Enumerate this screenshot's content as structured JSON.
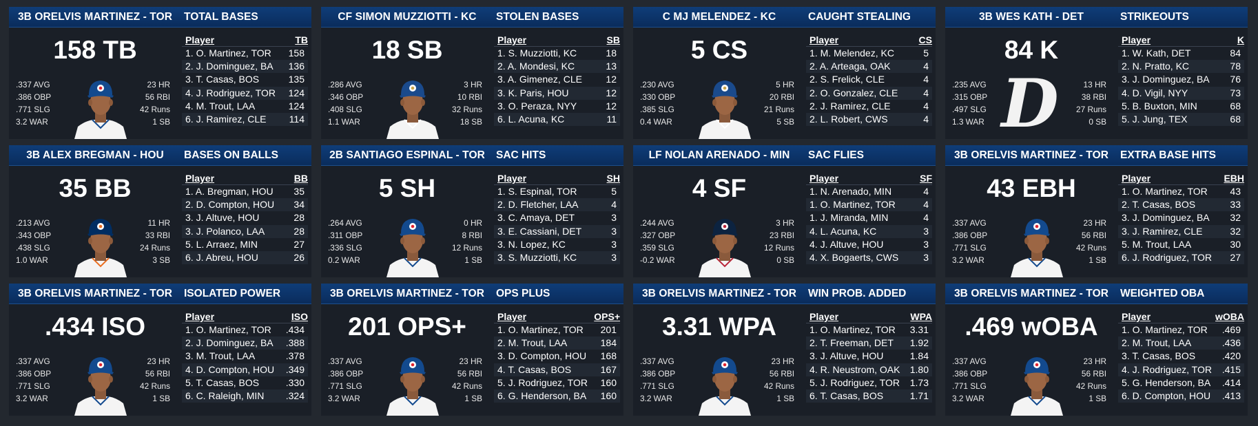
{
  "cards": [
    {
      "player": "3B ORELVIS MARTINEZ - TOR",
      "category": "TOTAL BASES",
      "big": "158 TB",
      "left_stats": [
        ".337 AVG",
        ".386 OBP",
        ".771 SLG",
        "3.2 WAR"
      ],
      "right_stats": [
        "23 HR",
        "56 RBI",
        "42 Runs",
        "1 SB"
      ],
      "portrait": "blue-jays-cap",
      "col_abbr": "TB",
      "rows": [
        [
          "1. O. Martinez, TOR",
          "158"
        ],
        [
          "2. J. Dominguez, BA",
          "136"
        ],
        [
          "3. T. Casas, BOS",
          "135"
        ],
        [
          "4. J. Rodriguez, TOR",
          "124"
        ],
        [
          "4. M. Trout, LAA",
          "124"
        ],
        [
          "6. J. Ramirez, CLE",
          "114"
        ]
      ]
    },
    {
      "player": "CF SIMON MUZZIOTTI - KC",
      "category": "STOLEN BASES",
      "big": "18 SB",
      "left_stats": [
        ".286 AVG",
        ".346 OBP",
        ".408 SLG",
        "1.1 WAR"
      ],
      "right_stats": [
        "3 HR",
        "10 RBI",
        "32 Runs",
        "18 SB"
      ],
      "portrait": "royals-cap",
      "col_abbr": "SB",
      "rows": [
        [
          "1. S. Muzziotti, KC",
          "18"
        ],
        [
          "2. A. Mondesi, KC",
          "13"
        ],
        [
          "3. A. Gimenez, CLE",
          "12"
        ],
        [
          "3. K. Paris, HOU",
          "12"
        ],
        [
          "3. O. Peraza, NYY",
          "12"
        ],
        [
          "6. L. Acuna, KC",
          "11"
        ]
      ]
    },
    {
      "player": "C MJ MELENDEZ - KC",
      "category": "CAUGHT STEALING",
      "big": "5 CS",
      "left_stats": [
        ".230 AVG",
        ".330 OBP",
        ".385 SLG",
        "0.4 WAR"
      ],
      "right_stats": [
        "5 HR",
        "20 RBI",
        "21 Runs",
        "5 SB"
      ],
      "portrait": "royals-cap",
      "col_abbr": "CS",
      "rows": [
        [
          "1. M. Melendez, KC",
          "5"
        ],
        [
          "2. A. Arteaga, OAK",
          "4"
        ],
        [
          "2. S. Frelick, CLE",
          "4"
        ],
        [
          "2. O. Gonzalez, CLE",
          "4"
        ],
        [
          "2. J. Ramirez, CLE",
          "4"
        ],
        [
          "2. L. Robert, CWS",
          "4"
        ]
      ]
    },
    {
      "player": "3B WES KATH - DET",
      "category": "STRIKEOUTS",
      "big": "84 K",
      "left_stats": [
        ".235 AVG",
        ".315 OBP",
        ".497 SLG",
        "1.3 WAR"
      ],
      "right_stats": [
        "13 HR",
        "38 RBI",
        "27 Runs",
        "0 SB"
      ],
      "portrait": "tigers-logo",
      "col_abbr": "K",
      "rows": [
        [
          "1. W. Kath, DET",
          "84"
        ],
        [
          "2. N. Pratto, KC",
          "78"
        ],
        [
          "3. J. Dominguez, BA",
          "76"
        ],
        [
          "4. D. Vigil, NYY",
          "73"
        ],
        [
          "5. B. Buxton, MIN",
          "68"
        ],
        [
          "5. J. Jung, TEX",
          "68"
        ]
      ]
    },
    {
      "player": "3B ALEX BREGMAN - HOU",
      "category": "BASES ON BALLS",
      "big": "35 BB",
      "left_stats": [
        ".213 AVG",
        ".343 OBP",
        ".438 SLG",
        "1.0 WAR"
      ],
      "right_stats": [
        "11 HR",
        "33 RBI",
        "24 Runs",
        "3 SB"
      ],
      "portrait": "astros-cap",
      "col_abbr": "BB",
      "rows": [
        [
          "1. A. Bregman, HOU",
          "35"
        ],
        [
          "2. D. Compton, HOU",
          "34"
        ],
        [
          "3. J. Altuve, HOU",
          "28"
        ],
        [
          "3. J. Polanco, LAA",
          "28"
        ],
        [
          "5. L. Arraez, MIN",
          "27"
        ],
        [
          "6. J. Abreu, HOU",
          "26"
        ]
      ]
    },
    {
      "player": "2B SANTIAGO ESPINAL - TOR",
      "category": "SAC HITS",
      "big": "5 SH",
      "left_stats": [
        ".264 AVG",
        ".311 OBP",
        ".336 SLG",
        "0.2 WAR"
      ],
      "right_stats": [
        "0 HR",
        "8 RBI",
        "12 Runs",
        "1 SB"
      ],
      "portrait": "blue-jays-cap",
      "col_abbr": "SH",
      "rows": [
        [
          "1. S. Espinal, TOR",
          "5"
        ],
        [
          "2. D. Fletcher, LAA",
          "4"
        ],
        [
          "3. C. Amaya, DET",
          "3"
        ],
        [
          "3. E. Cassiani, DET",
          "3"
        ],
        [
          "3. N. Lopez, KC",
          "3"
        ],
        [
          "3. S. Muzziotti, KC",
          "3"
        ]
      ]
    },
    {
      "player": "LF NOLAN ARENADO - MIN",
      "category": "SAC FLIES",
      "big": "4 SF",
      "left_stats": [
        ".244 AVG",
        ".327 OBP",
        ".359 SLG",
        "-0.2 WAR"
      ],
      "right_stats": [
        "3 HR",
        "23 RBI",
        "12 Runs",
        "0 SB"
      ],
      "portrait": "twins-cap",
      "col_abbr": "SF",
      "rows": [
        [
          "1. N. Arenado, MIN",
          "4"
        ],
        [
          "1. O. Martinez, TOR",
          "4"
        ],
        [
          "1. J. Miranda, MIN",
          "4"
        ],
        [
          "4. L. Acuna, KC",
          "3"
        ],
        [
          "4. J. Altuve, HOU",
          "3"
        ],
        [
          "4. X. Bogaerts, CWS",
          "3"
        ]
      ]
    },
    {
      "player": "3B ORELVIS MARTINEZ - TOR",
      "category": "EXTRA BASE HITS",
      "big": "43 EBH",
      "left_stats": [
        ".337 AVG",
        ".386 OBP",
        ".771 SLG",
        "3.2 WAR"
      ],
      "right_stats": [
        "23 HR",
        "56 RBI",
        "42 Runs",
        "1 SB"
      ],
      "portrait": "blue-jays-cap",
      "col_abbr": "EBH",
      "rows": [
        [
          "1. O. Martinez, TOR",
          "43"
        ],
        [
          "2. T. Casas, BOS",
          "33"
        ],
        [
          "3. J. Dominguez, BA",
          "32"
        ],
        [
          "3. J. Ramirez, CLE",
          "32"
        ],
        [
          "5. M. Trout, LAA",
          "30"
        ],
        [
          "6. J. Rodriguez, TOR",
          "27"
        ]
      ]
    },
    {
      "player": "3B ORELVIS MARTINEZ - TOR",
      "category": "ISOLATED POWER",
      "big": ".434 ISO",
      "left_stats": [
        ".337 AVG",
        ".386 OBP",
        ".771 SLG",
        "3.2 WAR"
      ],
      "right_stats": [
        "23 HR",
        "56 RBI",
        "42 Runs",
        "1 SB"
      ],
      "portrait": "blue-jays-cap",
      "col_abbr": "ISO",
      "rows": [
        [
          "1. O. Martinez, TOR",
          ".434"
        ],
        [
          "2. J. Dominguez, BA",
          ".388"
        ],
        [
          "3. M. Trout, LAA",
          ".378"
        ],
        [
          "4. D. Compton, HOU",
          ".349"
        ],
        [
          "5. T. Casas, BOS",
          ".330"
        ],
        [
          "6. C. Raleigh, MIN",
          ".324"
        ]
      ]
    },
    {
      "player": "3B ORELVIS MARTINEZ - TOR",
      "category": "OPS PLUS",
      "big": "201 OPS+",
      "left_stats": [
        ".337 AVG",
        ".386 OBP",
        ".771 SLG",
        "3.2 WAR"
      ],
      "right_stats": [
        "23 HR",
        "56 RBI",
        "42 Runs",
        "1 SB"
      ],
      "portrait": "blue-jays-cap",
      "col_abbr": "OPS+",
      "rows": [
        [
          "1. O. Martinez, TOR",
          "201"
        ],
        [
          "2. M. Trout, LAA",
          "184"
        ],
        [
          "3. D. Compton, HOU",
          "168"
        ],
        [
          "4. T. Casas, BOS",
          "167"
        ],
        [
          "5. J. Rodriguez, TOR",
          "160"
        ],
        [
          "6. G. Henderson, BA",
          "160"
        ]
      ]
    },
    {
      "player": "3B ORELVIS MARTINEZ - TOR",
      "category": "WIN PROB. ADDED",
      "big": "3.31 WPA",
      "left_stats": [
        ".337 AVG",
        ".386 OBP",
        ".771 SLG",
        "3.2 WAR"
      ],
      "right_stats": [
        "23 HR",
        "56 RBI",
        "42 Runs",
        "1 SB"
      ],
      "portrait": "blue-jays-cap",
      "col_abbr": "WPA",
      "rows": [
        [
          "1. O. Martinez, TOR",
          "3.31"
        ],
        [
          "2. T. Freeman, DET",
          "1.92"
        ],
        [
          "3. J. Altuve, HOU",
          "1.84"
        ],
        [
          "4. R. Neustrom, OAK",
          "1.80"
        ],
        [
          "5. J. Rodriguez, TOR",
          "1.73"
        ],
        [
          "6. T. Casas, BOS",
          "1.71"
        ]
      ]
    },
    {
      "player": "3B ORELVIS MARTINEZ - TOR",
      "category": "WEIGHTED OBA",
      "big": ".469 wOBA",
      "left_stats": [
        ".337 AVG",
        ".386 OBP",
        ".771 SLG",
        "3.2 WAR"
      ],
      "right_stats": [
        "23 HR",
        "56 RBI",
        "42 Runs",
        "1 SB"
      ],
      "portrait": "blue-jays-cap",
      "col_abbr": "wOBA",
      "rows": [
        [
          "1. O. Martinez, TOR",
          ".469"
        ],
        [
          "2. M. Trout, LAA",
          ".436"
        ],
        [
          "3. T. Casas, BOS",
          ".420"
        ],
        [
          "4. J. Rodriguez, TOR",
          ".415"
        ],
        [
          "5. G. Henderson, BA",
          ".414"
        ],
        [
          "6. D. Compton, HOU",
          ".413"
        ]
      ]
    }
  ],
  "table_player_header": "Player",
  "colors": {
    "header_bg": "#0f3d78",
    "card_bg": "#1a1f27",
    "page_bg": "#23282f",
    "jays_blue": "#134a8e",
    "royals_blue": "#1a4a8c",
    "twins_navy": "#0c2340",
    "astros_navy": "#002d62",
    "astros_orange": "#eb6e1f"
  }
}
